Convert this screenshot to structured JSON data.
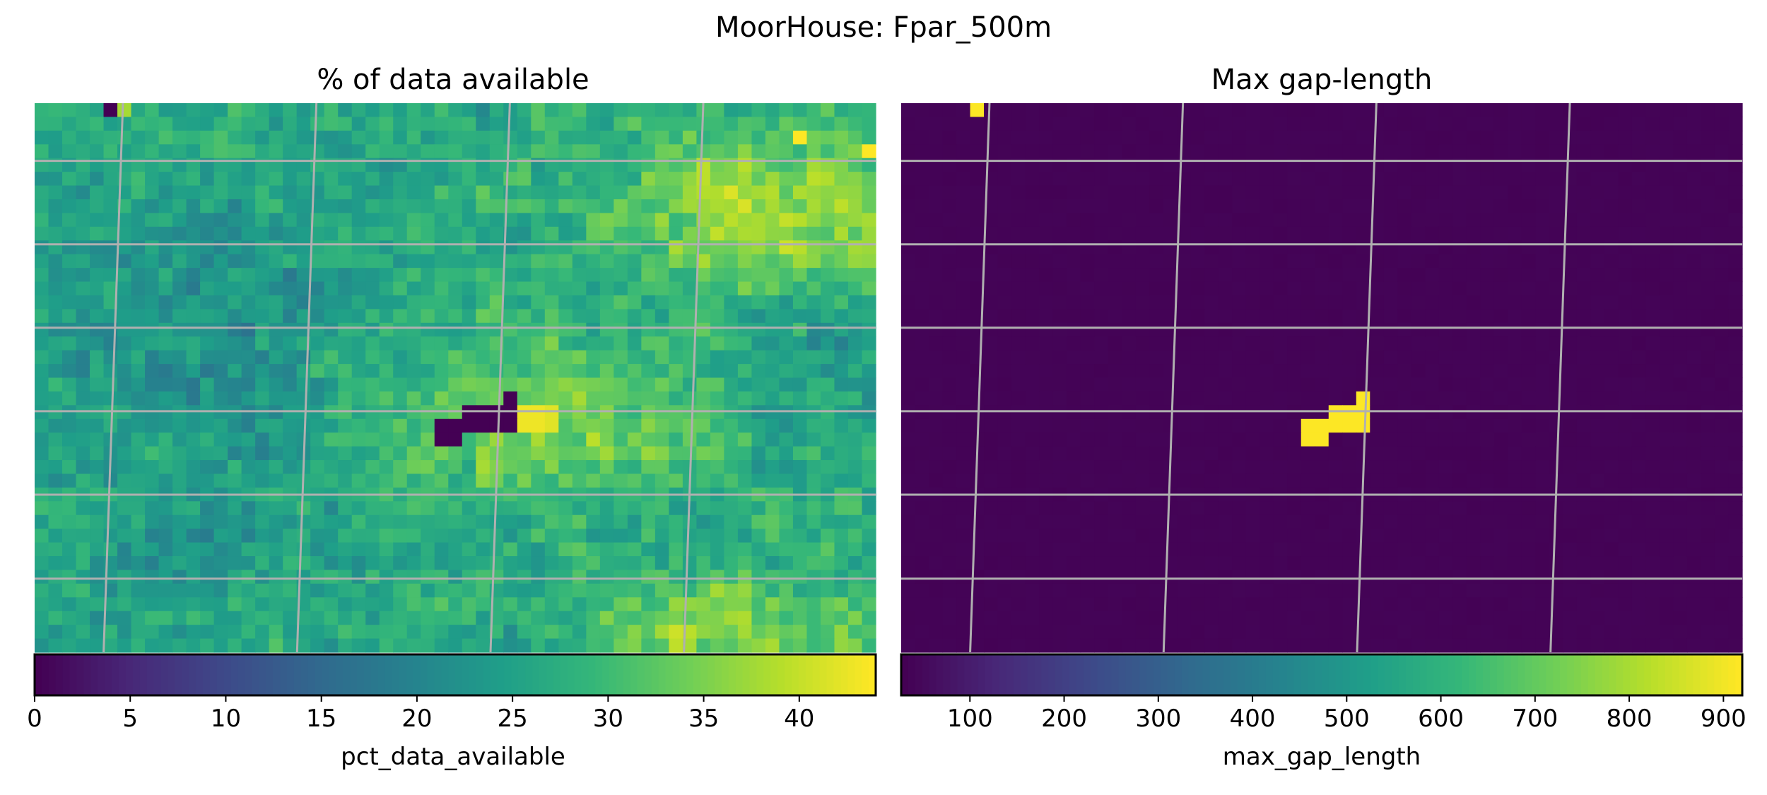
{
  "figure": {
    "suptitle": "MoorHouse: Fpar_500m"
  },
  "colors": {
    "viridis": [
      "#440154",
      "#482878",
      "#3e4989",
      "#31688e",
      "#26828e",
      "#1f9e89",
      "#35b779",
      "#6ece58",
      "#b5de2b",
      "#fde725"
    ],
    "gridline": "#b0b0b0"
  },
  "chart_data": [
    {
      "type": "heatmap",
      "title": "% of data available",
      "colorbar": {
        "label": "pct_data_available",
        "range": [
          0,
          44
        ],
        "ticks": [
          0,
          5,
          10,
          15,
          20,
          25,
          30,
          35,
          40
        ],
        "tick_labels": [
          "0",
          "5",
          "10",
          "15",
          "20",
          "25",
          "30",
          "35",
          "40"
        ]
      },
      "grid": true,
      "grid_size": [
        40,
        61
      ],
      "background_level": 27,
      "zones": [
        {
          "cx": 0.88,
          "cy": 0.2,
          "rx": 0.18,
          "ry": 0.16,
          "value": 38
        },
        {
          "cx": 0.6,
          "cy": 0.58,
          "rx": 0.22,
          "ry": 0.14,
          "value": 35
        },
        {
          "cx": 0.82,
          "cy": 0.96,
          "rx": 0.16,
          "ry": 0.1,
          "value": 36
        },
        {
          "cx": 0.18,
          "cy": 0.4,
          "rx": 0.2,
          "ry": 0.25,
          "value": 22
        },
        {
          "cx": 0.15,
          "cy": 0.82,
          "rx": 0.15,
          "ry": 0.15,
          "value": 23
        },
        {
          "cx": 0.92,
          "cy": 0.48,
          "rx": 0.1,
          "ry": 0.12,
          "value": 24
        }
      ],
      "special_cells": [
        {
          "row": 0,
          "col": 5,
          "value": 0
        },
        {
          "row": 0,
          "col": 6,
          "value": 38
        },
        {
          "row": 22,
          "col": 31,
          "value": 0
        },
        {
          "row": 22,
          "col": 32,
          "value": 0
        },
        {
          "row": 22,
          "col": 33,
          "value": 0
        },
        {
          "row": 22,
          "col": 34,
          "value": 0
        },
        {
          "row": 21,
          "col": 34,
          "value": 0
        },
        {
          "row": 23,
          "col": 29,
          "value": 0
        },
        {
          "row": 23,
          "col": 30,
          "value": 0
        },
        {
          "row": 23,
          "col": 31,
          "value": 0
        },
        {
          "row": 23,
          "col": 32,
          "value": 0
        },
        {
          "row": 23,
          "col": 33,
          "value": 0
        },
        {
          "row": 23,
          "col": 34,
          "value": 0
        },
        {
          "row": 24,
          "col": 29,
          "value": 0
        },
        {
          "row": 24,
          "col": 30,
          "value": 0
        },
        {
          "row": 22,
          "col": 35,
          "value": 43
        },
        {
          "row": 22,
          "col": 36,
          "value": 43
        },
        {
          "row": 22,
          "col": 37,
          "value": 42
        },
        {
          "row": 23,
          "col": 35,
          "value": 43
        },
        {
          "row": 23,
          "col": 36,
          "value": 43
        },
        {
          "row": 23,
          "col": 37,
          "value": 42
        },
        {
          "row": 2,
          "col": 55,
          "value": 44
        },
        {
          "row": 3,
          "col": 60,
          "value": 44
        }
      ]
    },
    {
      "type": "heatmap",
      "title": "Max gap-length",
      "colorbar": {
        "label": "max_gap_length",
        "range": [
          27,
          920
        ],
        "ticks": [
          100,
          200,
          300,
          400,
          500,
          600,
          700,
          800,
          900
        ],
        "tick_labels": [
          "100",
          "200",
          "300",
          "400",
          "500",
          "600",
          "700",
          "800",
          "900"
        ]
      },
      "grid": true,
      "grid_size": [
        40,
        61
      ],
      "background_level": 33,
      "zones": [],
      "special_cells": [
        {
          "row": 0,
          "col": 5,
          "value": 918
        },
        {
          "row": 21,
          "col": 33,
          "value": 918
        },
        {
          "row": 22,
          "col": 31,
          "value": 918
        },
        {
          "row": 22,
          "col": 32,
          "value": 918
        },
        {
          "row": 22,
          "col": 33,
          "value": 918
        },
        {
          "row": 23,
          "col": 29,
          "value": 918
        },
        {
          "row": 23,
          "col": 30,
          "value": 918
        },
        {
          "row": 23,
          "col": 31,
          "value": 918
        },
        {
          "row": 23,
          "col": 32,
          "value": 918
        },
        {
          "row": 23,
          "col": 33,
          "value": 918
        },
        {
          "row": 24,
          "col": 29,
          "value": 918
        },
        {
          "row": 24,
          "col": 30,
          "value": 918
        }
      ]
    }
  ]
}
